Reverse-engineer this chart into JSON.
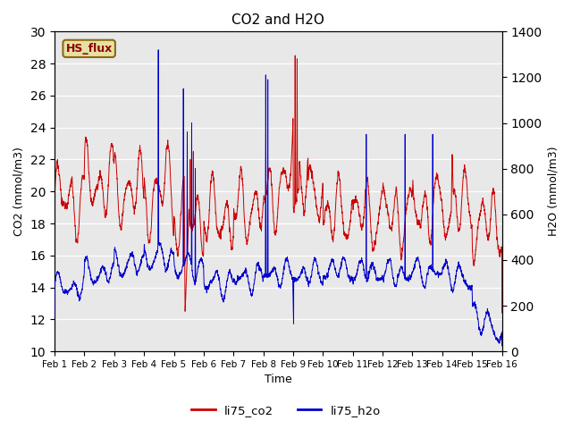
{
  "title": "CO2 and H2O",
  "xlabel": "Time",
  "ylabel_left": "CO2 (mmol/m3)",
  "ylabel_right": "H2O (mmol/m3)",
  "legend_label": "HS_flux",
  "series_co2_label": "li75_co2",
  "series_h2o_label": "li75_h2o",
  "co2_color": "#cc0000",
  "h2o_color": "#0000cc",
  "ylim_left": [
    10,
    30
  ],
  "ylim_right": [
    0,
    1400
  ],
  "yticks_left": [
    10,
    12,
    14,
    16,
    18,
    20,
    22,
    24,
    26,
    28,
    30
  ],
  "yticks_right": [
    0,
    200,
    400,
    600,
    800,
    1000,
    1200,
    1400
  ],
  "bg_color": "#e8e8e8",
  "fig_bg": "#ffffff",
  "hs_flux_bg": "#e8e0a0",
  "hs_flux_border": "#8b6914",
  "hs_flux_text": "#8b0000",
  "n_days": 15,
  "pts_per_day": 288,
  "tick_labels": [
    "Feb 1",
    "Feb 2",
    "Feb 3",
    "Feb 4",
    "Feb 5",
    "Feb 6",
    "Feb 7",
    "Feb 8",
    "Feb 9",
    "Feb 10",
    "Feb 11",
    "Feb 12",
    "Feb 13",
    "Feb 14",
    "Feb 15",
    "Feb 16"
  ]
}
